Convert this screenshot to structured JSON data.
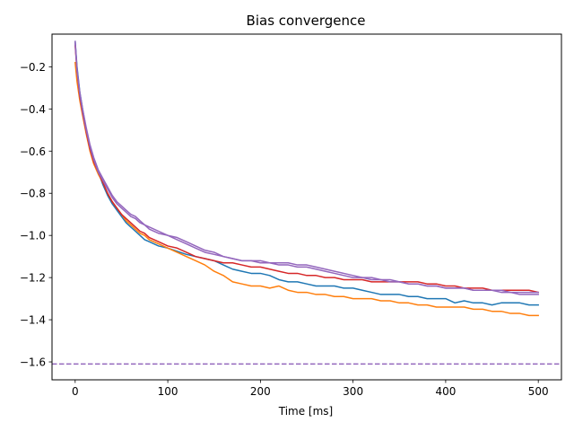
{
  "chart_data": {
    "type": "line",
    "title": "Bias convergence",
    "xlabel": "Time [ms]",
    "ylabel": "",
    "xlim": [
      -25,
      525
    ],
    "ylim": [
      -1.685,
      -0.045
    ],
    "grid": false,
    "legend": "none",
    "x_ticks": [
      0,
      100,
      200,
      300,
      400,
      500
    ],
    "x_tick_labels": [
      "0",
      "100",
      "200",
      "300",
      "400",
      "500"
    ],
    "y_ticks": [
      -0.2,
      -0.4,
      -0.6,
      -0.8,
      -1.0,
      -1.2,
      -1.4,
      -1.6
    ],
    "y_tick_labels": [
      "−0.2",
      "−0.4",
      "−0.6",
      "−0.8",
      "−1.0",
      "−1.2",
      "−1.4",
      "−1.6"
    ],
    "reference_line": {
      "y": -1.61,
      "style": "dashed",
      "color": "#9467bd"
    },
    "series": [
      {
        "color": "#1f77b4",
        "x": [
          0,
          2,
          5,
          8,
          12,
          16,
          20,
          25,
          30,
          35,
          40,
          45,
          50,
          55,
          60,
          65,
          70,
          75,
          80,
          90,
          100,
          110,
          120,
          130,
          140,
          150,
          160,
          170,
          180,
          190,
          200,
          210,
          220,
          230,
          240,
          250,
          260,
          270,
          280,
          290,
          300,
          310,
          320,
          330,
          340,
          350,
          360,
          370,
          380,
          390,
          400,
          410,
          420,
          430,
          440,
          450,
          460,
          470,
          480,
          490,
          500
        ],
        "y": [
          -0.08,
          -0.2,
          -0.32,
          -0.4,
          -0.5,
          -0.58,
          -0.64,
          -0.7,
          -0.76,
          -0.81,
          -0.85,
          -0.88,
          -0.91,
          -0.94,
          -0.96,
          -0.98,
          -1.0,
          -1.02,
          -1.03,
          -1.05,
          -1.06,
          -1.075,
          -1.09,
          -1.1,
          -1.11,
          -1.12,
          -1.14,
          -1.16,
          -1.17,
          -1.18,
          -1.18,
          -1.19,
          -1.21,
          -1.22,
          -1.22,
          -1.23,
          -1.24,
          -1.24,
          -1.24,
          -1.25,
          -1.25,
          -1.26,
          -1.27,
          -1.28,
          -1.28,
          -1.28,
          -1.29,
          -1.29,
          -1.3,
          -1.3,
          -1.3,
          -1.32,
          -1.31,
          -1.32,
          -1.32,
          -1.33,
          -1.32,
          -1.32,
          -1.32,
          -1.33,
          -1.33
        ]
      },
      {
        "color": "#ff7f0e",
        "x": [
          0,
          2,
          5,
          8,
          12,
          16,
          20,
          25,
          30,
          35,
          40,
          45,
          50,
          55,
          60,
          65,
          70,
          75,
          80,
          90,
          100,
          110,
          120,
          130,
          140,
          150,
          160,
          170,
          180,
          190,
          200,
          210,
          220,
          230,
          240,
          250,
          260,
          270,
          280,
          290,
          300,
          310,
          320,
          330,
          340,
          350,
          360,
          370,
          380,
          390,
          400,
          410,
          420,
          430,
          440,
          450,
          460,
          470,
          480,
          490,
          500
        ],
        "y": [
          -0.18,
          -0.27,
          -0.36,
          -0.43,
          -0.52,
          -0.6,
          -0.66,
          -0.71,
          -0.75,
          -0.8,
          -0.84,
          -0.87,
          -0.9,
          -0.93,
          -0.95,
          -0.97,
          -0.99,
          -1.0,
          -1.02,
          -1.04,
          -1.06,
          -1.08,
          -1.1,
          -1.12,
          -1.14,
          -1.17,
          -1.19,
          -1.22,
          -1.23,
          -1.24,
          -1.24,
          -1.25,
          -1.24,
          -1.26,
          -1.27,
          -1.27,
          -1.28,
          -1.28,
          -1.29,
          -1.29,
          -1.3,
          -1.3,
          -1.3,
          -1.31,
          -1.31,
          -1.32,
          -1.32,
          -1.33,
          -1.33,
          -1.34,
          -1.34,
          -1.34,
          -1.34,
          -1.35,
          -1.35,
          -1.36,
          -1.36,
          -1.37,
          -1.37,
          -1.38,
          -1.38
        ]
      },
      {
        "color": "#d62728",
        "x": [
          0,
          2,
          5,
          8,
          12,
          16,
          20,
          25,
          30,
          35,
          40,
          45,
          50,
          55,
          60,
          65,
          70,
          75,
          80,
          90,
          100,
          110,
          120,
          130,
          140,
          150,
          160,
          170,
          180,
          190,
          200,
          210,
          220,
          230,
          240,
          250,
          260,
          270,
          280,
          290,
          300,
          310,
          320,
          330,
          340,
          350,
          360,
          370,
          380,
          390,
          400,
          410,
          420,
          430,
          440,
          450,
          460,
          470,
          480,
          490,
          500
        ],
        "y": [
          -0.1,
          -0.22,
          -0.34,
          -0.42,
          -0.51,
          -0.59,
          -0.65,
          -0.7,
          -0.75,
          -0.8,
          -0.84,
          -0.87,
          -0.9,
          -0.92,
          -0.94,
          -0.96,
          -0.98,
          -0.99,
          -1.01,
          -1.03,
          -1.05,
          -1.06,
          -1.08,
          -1.1,
          -1.11,
          -1.12,
          -1.13,
          -1.13,
          -1.14,
          -1.15,
          -1.15,
          -1.16,
          -1.17,
          -1.18,
          -1.18,
          -1.19,
          -1.19,
          -1.2,
          -1.2,
          -1.21,
          -1.21,
          -1.21,
          -1.22,
          -1.22,
          -1.22,
          -1.22,
          -1.22,
          -1.22,
          -1.23,
          -1.23,
          -1.24,
          -1.24,
          -1.25,
          -1.25,
          -1.25,
          -1.26,
          -1.26,
          -1.26,
          -1.26,
          -1.26,
          -1.27
        ]
      },
      {
        "color": "#9467bd",
        "x": [
          0,
          2,
          5,
          8,
          12,
          16,
          20,
          25,
          30,
          35,
          40,
          45,
          50,
          55,
          60,
          65,
          70,
          75,
          80,
          90,
          100,
          110,
          120,
          130,
          140,
          150,
          160,
          170,
          180,
          190,
          200,
          210,
          220,
          230,
          240,
          250,
          260,
          270,
          280,
          290,
          300,
          310,
          320,
          330,
          340,
          350,
          360,
          370,
          380,
          390,
          400,
          410,
          420,
          430,
          440,
          450,
          460,
          470,
          480,
          490,
          500
        ],
        "y": [
          -0.09,
          -0.21,
          -0.33,
          -0.41,
          -0.5,
          -0.58,
          -0.64,
          -0.7,
          -0.74,
          -0.78,
          -0.82,
          -0.85,
          -0.87,
          -0.89,
          -0.91,
          -0.92,
          -0.94,
          -0.95,
          -0.97,
          -0.99,
          -1.0,
          -1.02,
          -1.04,
          -1.06,
          -1.08,
          -1.09,
          -1.1,
          -1.11,
          -1.12,
          -1.12,
          -1.13,
          -1.13,
          -1.14,
          -1.14,
          -1.15,
          -1.15,
          -1.16,
          -1.17,
          -1.18,
          -1.19,
          -1.2,
          -1.2,
          -1.21,
          -1.21,
          -1.22,
          -1.22,
          -1.23,
          -1.23,
          -1.24,
          -1.24,
          -1.25,
          -1.25,
          -1.25,
          -1.26,
          -1.26,
          -1.26,
          -1.27,
          -1.27,
          -1.28,
          -1.28,
          -1.28
        ]
      },
      {
        "color": "#9467bd",
        "x": [
          0,
          2,
          5,
          8,
          12,
          16,
          20,
          25,
          30,
          35,
          40,
          45,
          50,
          55,
          60,
          65,
          70,
          75,
          80,
          90,
          100,
          110,
          120,
          130,
          140,
          150,
          160,
          170,
          180,
          190,
          200,
          210,
          220,
          230,
          240,
          250,
          260,
          270,
          280,
          290,
          300,
          310,
          320,
          330,
          340,
          350,
          360,
          370,
          380,
          390,
          400,
          410,
          420,
          430,
          440,
          450,
          460,
          470,
          480,
          490,
          500
        ],
        "y": [
          -0.08,
          -0.22,
          -0.32,
          -0.4,
          -0.49,
          -0.57,
          -0.63,
          -0.69,
          -0.73,
          -0.77,
          -0.81,
          -0.84,
          -0.86,
          -0.88,
          -0.9,
          -0.91,
          -0.93,
          -0.95,
          -0.96,
          -0.98,
          -1.0,
          -1.01,
          -1.03,
          -1.05,
          -1.07,
          -1.08,
          -1.1,
          -1.11,
          -1.12,
          -1.12,
          -1.12,
          -1.13,
          -1.13,
          -1.13,
          -1.14,
          -1.14,
          -1.15,
          -1.16,
          -1.17,
          -1.18,
          -1.19,
          -1.2,
          -1.2,
          -1.21,
          -1.21,
          -1.22,
          -1.23,
          -1.23,
          -1.24,
          -1.24,
          -1.25,
          -1.25,
          -1.25,
          -1.26,
          -1.26,
          -1.26,
          -1.26,
          -1.27,
          -1.27,
          -1.27,
          -1.27
        ]
      }
    ]
  }
}
